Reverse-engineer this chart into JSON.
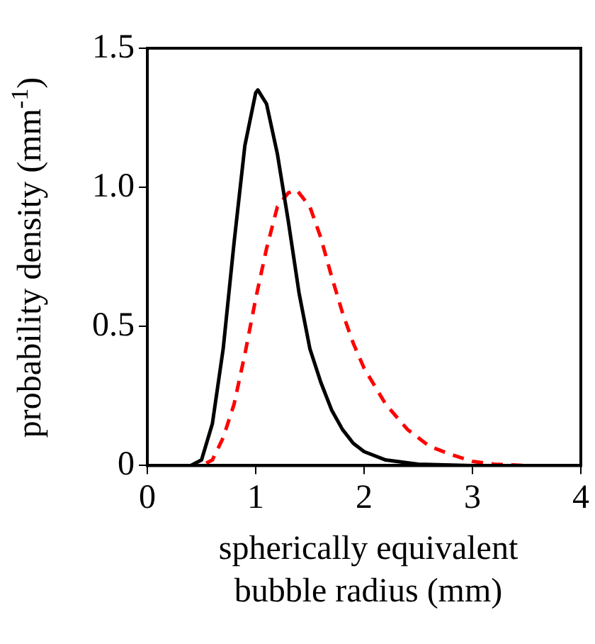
{
  "chart_data": {
    "type": "line",
    "xlabel": "spherically equivalent bubble radius (mm)",
    "ylabel": "probability density (mm$^{-1}$)",
    "xlim": [
      0,
      4
    ],
    "xticks": [
      0,
      1,
      2,
      3,
      4
    ],
    "ylim": [
      0,
      1.5
    ],
    "yticks": [
      0,
      0.5,
      {
        "value": 1,
        "label": "1.0"
      },
      1.5
    ],
    "grid": false,
    "legend": false,
    "marker": "none",
    "series": [
      {
        "color": "#000000",
        "line_style": "solid",
        "x": [
          0,
          0.4,
          0.5,
          0.6,
          0.7,
          0.8,
          0.9,
          1.0,
          1.02,
          1.1,
          1.2,
          1.3,
          1.4,
          1.5,
          1.6,
          1.7,
          1.8,
          1.9,
          2.0,
          2.2,
          2.5,
          3,
          4
        ],
        "values": [
          0,
          0,
          0.02,
          0.15,
          0.42,
          0.8,
          1.15,
          1.34,
          1.35,
          1.3,
          1.12,
          0.88,
          0.62,
          0.42,
          0.3,
          0.2,
          0.13,
          0.08,
          0.05,
          0.02,
          0.005,
          0,
          0
        ]
      },
      {
        "color": "#ff0000",
        "line_style": "dashed",
        "x": [
          0,
          0.5,
          0.6,
          0.7,
          0.8,
          0.9,
          1.0,
          1.1,
          1.2,
          1.3,
          1.38,
          1.5,
          1.6,
          1.7,
          1.8,
          1.9,
          2.0,
          2.2,
          2.4,
          2.6,
          2.8,
          3.0,
          3.2,
          3.5,
          4
        ],
        "values": [
          0,
          0,
          0.02,
          0.1,
          0.22,
          0.4,
          0.6,
          0.78,
          0.93,
          0.98,
          0.99,
          0.93,
          0.82,
          0.68,
          0.55,
          0.44,
          0.35,
          0.22,
          0.13,
          0.07,
          0.04,
          0.015,
          0.005,
          0,
          0
        ]
      }
    ]
  }
}
